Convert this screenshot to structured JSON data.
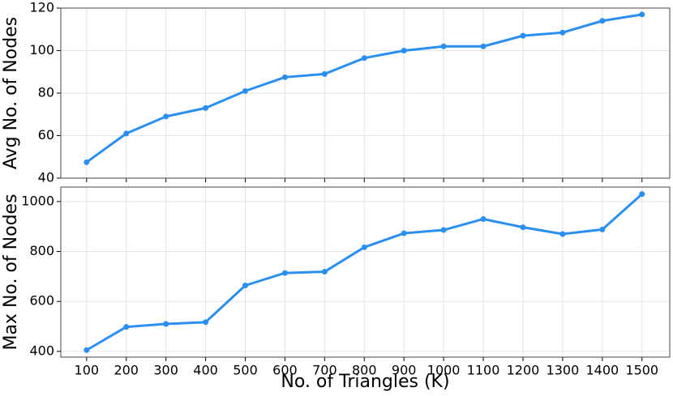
{
  "chart_data": [
    {
      "type": "line",
      "y_label": "Avg No. of Nodes",
      "x": [
        100,
        200,
        300,
        400,
        500,
        600,
        700,
        800,
        900,
        1000,
        1100,
        1200,
        1300,
        1400,
        1500
      ],
      "series": [
        {
          "color": "#2b8ff0",
          "values": [
            47.5,
            61,
            69,
            73,
            81,
            87.5,
            89,
            96.5,
            100,
            102,
            102,
            107,
            108.5,
            114,
            117
          ]
        }
      ],
      "xlim": [
        35,
        1570
      ],
      "ylim": [
        40,
        120
      ],
      "yticks": [
        40,
        60,
        80,
        100,
        120
      ],
      "grid": true
    },
    {
      "type": "line",
      "x_label": "No. of Triangles (K)",
      "y_label": "Max No. of Nodes",
      "x": [
        100,
        200,
        300,
        400,
        500,
        600,
        700,
        800,
        900,
        1000,
        1100,
        1200,
        1300,
        1400,
        1500
      ],
      "series": [
        {
          "color": "#2b8ff0",
          "values": [
            405,
            498,
            510,
            517,
            664,
            714,
            719,
            817,
            873,
            886,
            930,
            897,
            870,
            888,
            1030
          ]
        }
      ],
      "xlim": [
        35,
        1570
      ],
      "xticks": [
        100,
        200,
        300,
        400,
        500,
        600,
        700,
        800,
        900,
        1000,
        1100,
        1200,
        1300,
        1400,
        1500
      ],
      "ylim": [
        377,
        1058
      ],
      "yticks": [
        400,
        600,
        800,
        1000
      ],
      "grid": true
    }
  ]
}
